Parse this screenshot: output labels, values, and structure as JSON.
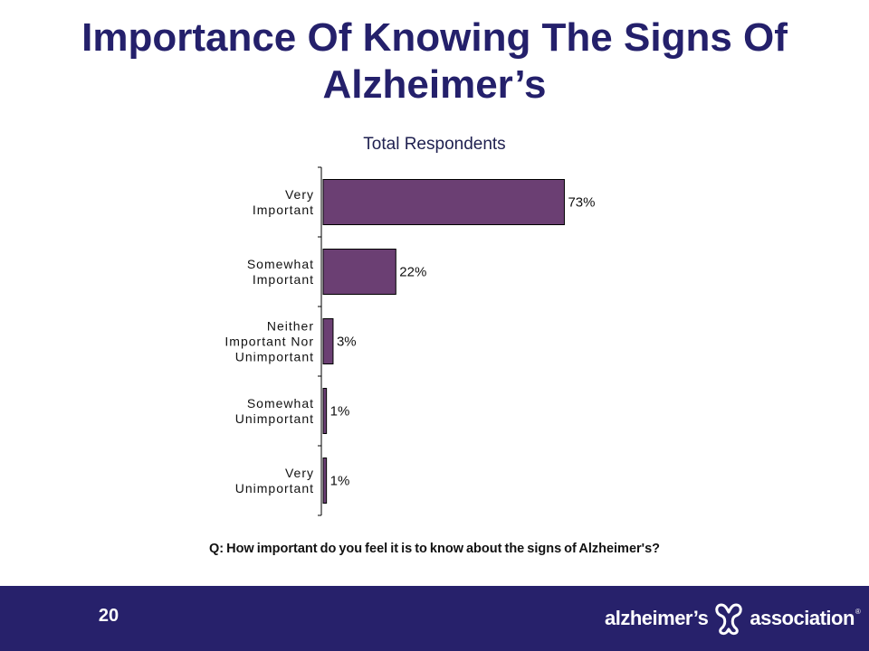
{
  "slide": {
    "title": "Importance Of Knowing The Signs Of Alzheimer’s",
    "question": "Q:  How important do you feel it is to know about the signs of Alzheimer's?",
    "page_number": "20"
  },
  "logo": {
    "left_word": "alzheimer’s",
    "right_word": "association",
    "reg_mark": "®",
    "icon": "alzheimers-association-knot-icon"
  },
  "colors": {
    "title": "#24206b",
    "bar": "#6b3f73",
    "footer": "#27216b"
  },
  "chart_data": {
    "type": "bar",
    "orientation": "horizontal",
    "title": "Total Respondents",
    "categories": [
      [
        "Very",
        "Important"
      ],
      [
        "Somewhat",
        "Important"
      ],
      [
        "Neither",
        "Important Nor",
        "Unimportant"
      ],
      [
        "Somewhat",
        "Unimportant"
      ],
      [
        "Very",
        "Unimportant"
      ]
    ],
    "values": [
      73,
      22,
      3,
      1,
      1
    ],
    "value_labels": [
      "73%",
      "22%",
      "3%",
      "1%",
      "1%"
    ],
    "xlim": [
      0,
      100
    ],
    "grid": false,
    "legend": "none"
  }
}
